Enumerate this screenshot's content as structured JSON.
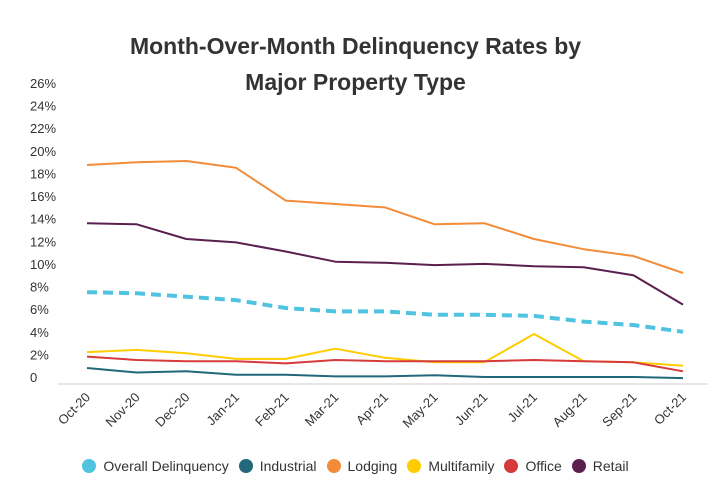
{
  "chart_data": {
    "type": "line",
    "title": "Month-Over-Month Delinquency Rates by Major Property Type",
    "title_lines": [
      "Month-Over-Month Delinquency Rates by",
      "Major Property Type"
    ],
    "xlabel": "",
    "ylabel": "",
    "ylim": [
      0,
      26
    ],
    "y_ticks": [
      0,
      2,
      4,
      6,
      8,
      10,
      12,
      14,
      16,
      18,
      20,
      22,
      24,
      26
    ],
    "y_tick_labels": [
      "0",
      "2%",
      "4%",
      "6%",
      "8%",
      "10%",
      "12%",
      "14%",
      "16%",
      "18%",
      "20%",
      "22%",
      "24%",
      "26%"
    ],
    "grid": false,
    "legend_position": "bottom",
    "categories": [
      "Oct-20",
      "Nov-20",
      "Dec-20",
      "Jan-21",
      "Feb-21",
      "Mar-21",
      "Apr-21",
      "May-21",
      "Jun-21",
      "Jul-21",
      "Aug-21",
      "Sep-21",
      "Oct-21"
    ],
    "series": [
      {
        "name": "Overall Delinquency",
        "color": "#4FC3E0",
        "dashed": true,
        "values": [
          7.5,
          7.4,
          7.1,
          6.8,
          6.1,
          5.8,
          5.8,
          5.5,
          5.5,
          5.4,
          4.9,
          4.6,
          4.0
        ]
      },
      {
        "name": "Industrial",
        "color": "#23687A",
        "dashed": false,
        "values": [
          0.8,
          0.4,
          0.5,
          0.2,
          0.2,
          0.05,
          0.05,
          0.15,
          0.0,
          0.0,
          0.0,
          0.0,
          -0.1
        ]
      },
      {
        "name": "Lodging",
        "color": "#F28C38",
        "dashed": false,
        "values": [
          18.75,
          19.0,
          19.1,
          18.5,
          15.6,
          15.3,
          15.0,
          13.5,
          13.6,
          12.2,
          11.3,
          10.7,
          9.2
        ]
      },
      {
        "name": "Multifamily",
        "color": "#FFCC00",
        "dashed": false,
        "values": [
          2.2,
          2.4,
          2.1,
          1.6,
          1.6,
          2.5,
          1.7,
          1.3,
          1.3,
          3.8,
          1.4,
          1.3,
          1.0
        ]
      },
      {
        "name": "Office",
        "color": "#D63B3B",
        "dashed": false,
        "values": [
          1.8,
          1.5,
          1.4,
          1.4,
          1.2,
          1.5,
          1.4,
          1.4,
          1.4,
          1.5,
          1.4,
          1.3,
          0.5
        ]
      },
      {
        "name": "Retail",
        "color": "#5B1F4F",
        "dashed": false,
        "values": [
          13.6,
          13.5,
          12.2,
          11.9,
          11.1,
          10.2,
          10.1,
          9.9,
          10.0,
          9.8,
          9.7,
          9.0,
          6.4
        ]
      }
    ]
  }
}
